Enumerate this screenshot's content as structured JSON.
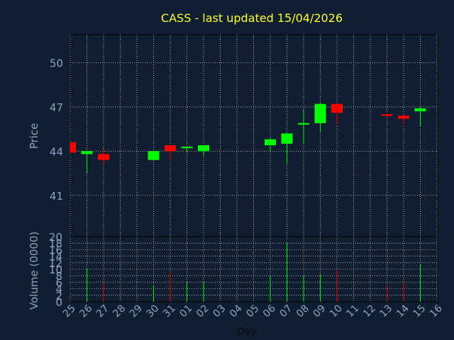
{
  "colors": {
    "background": "#0f1e30",
    "title": "#ffff33",
    "axis_text": "#8aa4c4",
    "up": "#00ff00",
    "down": "#ff0000",
    "grid": "#c8c8c8"
  },
  "chart_data": {
    "type": "candlestick",
    "title": "CASS - last updated 15/04/2026",
    "xlabel": "Day",
    "grid": true,
    "x_tick_labels": [
      "25",
      "26",
      "27",
      "28",
      "29",
      "30",
      "31",
      "01",
      "02",
      "03",
      "04",
      "05",
      "06",
      "07",
      "08",
      "09",
      "10",
      "11",
      "12",
      "13",
      "14",
      "15",
      "16"
    ],
    "price_panel": {
      "ylabel": "Price",
      "ylim": [
        38.2,
        51.9
      ],
      "y_ticks": [
        41,
        44,
        47,
        50
      ]
    },
    "volume_panel": {
      "ylabel": "Volume (0000)",
      "ylim": [
        0,
        20
      ],
      "y_ticks": [
        0,
        2,
        4,
        6,
        8,
        10,
        12,
        14,
        16,
        18,
        20
      ]
    },
    "candles": [
      {
        "day": "25",
        "open": 44.6,
        "close": 43.9,
        "high": 44.6,
        "low": 43.9,
        "volume": 0
      },
      {
        "day": "26",
        "open": 43.8,
        "close": 44.0,
        "high": 44.0,
        "low": 42.5,
        "volume": 10
      },
      {
        "day": "27",
        "open": 43.8,
        "close": 43.4,
        "high": 44.2,
        "low": 43.1,
        "volume": 6
      },
      {
        "day": "30",
        "open": 43.4,
        "close": 44.0,
        "high": 44.0,
        "low": 43.4,
        "volume": 5
      },
      {
        "day": "31",
        "open": 44.4,
        "close": 44.0,
        "high": 44.4,
        "low": 43.3,
        "volume": 9
      },
      {
        "day": "01",
        "open": 44.2,
        "close": 44.3,
        "high": 44.3,
        "low": 43.9,
        "volume": 6
      },
      {
        "day": "02",
        "open": 44.0,
        "close": 44.4,
        "high": 44.4,
        "low": 43.7,
        "volume": 6
      },
      {
        "day": "06",
        "open": 44.4,
        "close": 44.8,
        "high": 44.9,
        "low": 44.0,
        "volume": 8
      },
      {
        "day": "07",
        "open": 44.5,
        "close": 45.2,
        "high": 45.2,
        "low": 43.2,
        "volume": 18
      },
      {
        "day": "08",
        "open": 45.8,
        "close": 45.9,
        "high": 46.8,
        "low": 44.5,
        "volume": 8
      },
      {
        "day": "09",
        "open": 45.9,
        "close": 47.2,
        "high": 47.3,
        "low": 45.3,
        "volume": 8.5
      },
      {
        "day": "10",
        "open": 47.2,
        "close": 46.6,
        "high": 47.2,
        "low": 45.8,
        "volume": 9.5
      },
      {
        "day": "13",
        "open": 46.5,
        "close": 46.4,
        "high": 46.6,
        "low": 46.3,
        "volume": 5
      },
      {
        "day": "14",
        "open": 46.4,
        "close": 46.2,
        "high": 46.5,
        "low": 45.8,
        "volume": 6
      },
      {
        "day": "15",
        "open": 46.7,
        "close": 46.9,
        "high": 47.0,
        "low": 45.7,
        "volume": 11.5
      }
    ]
  }
}
